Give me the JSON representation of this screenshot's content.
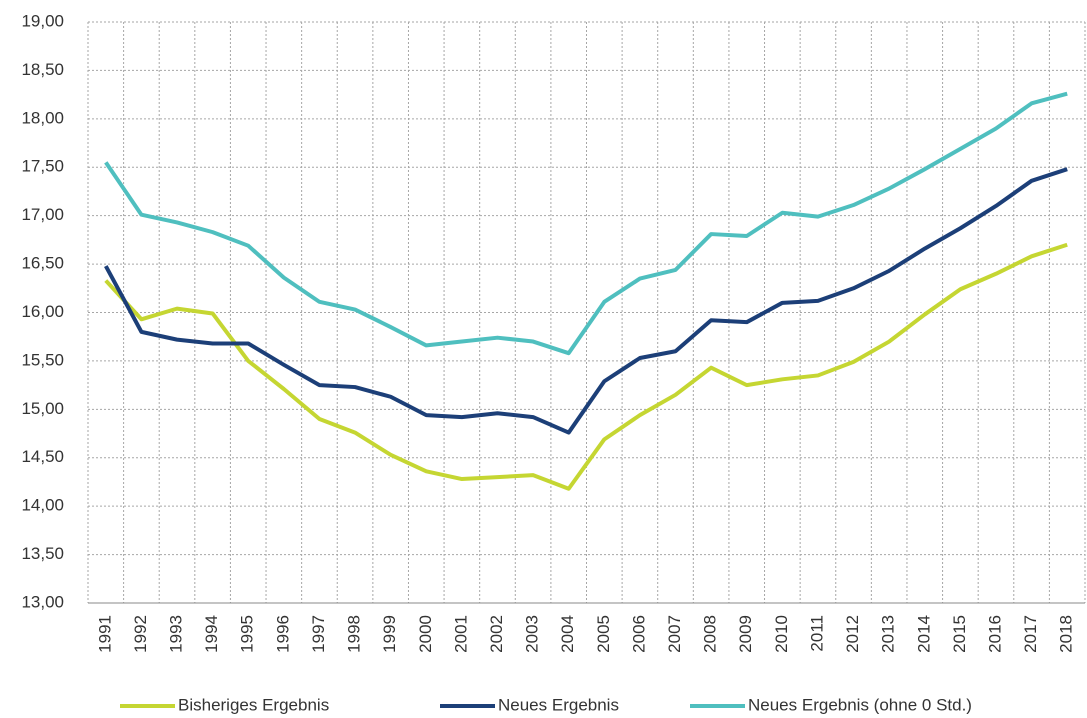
{
  "chart_data": {
    "type": "line",
    "categories": [
      "1991",
      "1992",
      "1993",
      "1994",
      "1995",
      "1996",
      "1997",
      "1998",
      "1999",
      "2000",
      "2001",
      "2002",
      "2003",
      "2004",
      "2005",
      "2006",
      "2007",
      "2008",
      "2009",
      "2010",
      "2011",
      "2012",
      "2013",
      "2014",
      "2015",
      "2016",
      "2017",
      "2018"
    ],
    "series": [
      {
        "name": "Bisheriges Ergebnis",
        "color": "#c5d632",
        "values": [
          16.33,
          15.93,
          16.04,
          15.99,
          15.5,
          15.21,
          14.9,
          14.76,
          14.53,
          14.36,
          14.28,
          14.3,
          14.32,
          14.18,
          14.69,
          14.94,
          15.15,
          15.43,
          15.25,
          15.31,
          15.35,
          15.49,
          15.7,
          15.98,
          16.24,
          16.4,
          16.58,
          16.7
        ]
      },
      {
        "name": "Neues Ergebnis",
        "color": "#1c3f78",
        "values": [
          16.48,
          15.8,
          15.72,
          15.68,
          15.68,
          15.46,
          15.25,
          15.23,
          15.13,
          14.94,
          14.92,
          14.96,
          14.92,
          14.76,
          15.29,
          15.53,
          15.6,
          15.92,
          15.9,
          16.1,
          16.12,
          16.25,
          16.43,
          16.66,
          16.87,
          17.1,
          17.36,
          17.48
        ]
      },
      {
        "name": "Neues Ergebnis (ohne 0 Std.)",
        "color": "#4fbfbf",
        "values": [
          17.55,
          17.01,
          16.93,
          16.83,
          16.69,
          16.36,
          16.11,
          16.03,
          15.85,
          15.66,
          15.7,
          15.74,
          15.7,
          15.58,
          16.11,
          16.35,
          16.44,
          16.81,
          16.79,
          17.03,
          16.99,
          17.11,
          17.28,
          17.48,
          17.69,
          17.9,
          18.16,
          18.26
        ]
      }
    ],
    "ylim": [
      13,
      19
    ],
    "yticks": [
      {
        "value": 13,
        "label": "13,00"
      },
      {
        "value": 13.5,
        "label": "13,50"
      },
      {
        "value": 14,
        "label": "14,00"
      },
      {
        "value": 14.5,
        "label": "14,50"
      },
      {
        "value": 15,
        "label": "15,00"
      },
      {
        "value": 15.5,
        "label": "15,50"
      },
      {
        "value": 16,
        "label": "16,00"
      },
      {
        "value": 16.5,
        "label": "16,50"
      },
      {
        "value": 17,
        "label": "17,00"
      },
      {
        "value": 17.5,
        "label": "17,50"
      },
      {
        "value": 18,
        "label": "18,00"
      },
      {
        "value": 18.5,
        "label": "18,50"
      },
      {
        "value": 19,
        "label": "19,00"
      }
    ],
    "grid": true,
    "legend": "bottom"
  }
}
